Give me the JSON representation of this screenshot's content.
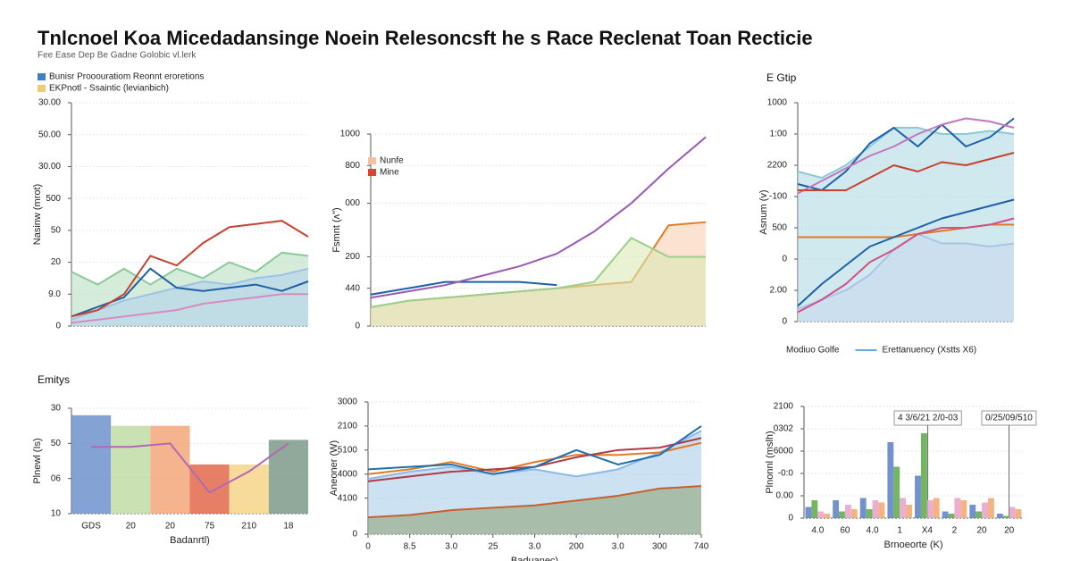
{
  "title": "Tnlcnoel Koa Micedadansinge Noein Relesoncsft he s Race Reclenat  Toan Recticie",
  "subtitle": "Fee Ease Dep  Be Gadne Golobic vl.lerk",
  "chart_data": [
    {
      "type": "line",
      "ylabel": "Nasinw (mrot)",
      "legend": [
        {
          "label": "Bunisr Prooouratiom Reonnt eroretions",
          "color": "#3f7fc4"
        },
        {
          "label": "EKPnotl - Ssaintic (levianbich)",
          "color": "#f0cc6a"
        }
      ],
      "x": [
        0,
        1,
        2,
        3,
        4,
        5,
        6,
        7,
        8,
        9
      ],
      "xlim": [
        0,
        9
      ],
      "ylim": [
        0,
        7
      ],
      "yticks": [
        0,
        {
          "value": 1,
          "label": "9.0"
        },
        {
          "value": 2,
          "label": "20"
        },
        {
          "value": 3,
          "label": "50"
        },
        {
          "value": 4,
          "label": "500"
        },
        {
          "value": 5,
          "label": "30.00"
        },
        {
          "value": 6,
          "label": "50.00"
        },
        {
          "value": 7,
          "label": "30.00"
        }
      ],
      "series": [
        {
          "fill": "#b7e0bf",
          "color": "#8cc99a",
          "values": [
            1.7,
            1.3,
            1.8,
            1.3,
            1.8,
            1.5,
            2.0,
            1.7,
            2.3,
            2.2
          ]
        },
        {
          "fill": "#b3d3ee",
          "color": "#9cc3e6",
          "values": [
            0.2,
            0.5,
            0.8,
            1.0,
            1.2,
            1.4,
            1.3,
            1.5,
            1.6,
            1.8
          ]
        },
        {
          "color": "#1f5fa8",
          "values": [
            0.3,
            0.6,
            0.9,
            1.8,
            1.2,
            1.1,
            1.2,
            1.3,
            1.1,
            1.4
          ]
        },
        {
          "color": "#c8412e",
          "values": [
            0.3,
            0.5,
            1.0,
            2.2,
            1.9,
            2.6,
            3.1,
            3.2,
            3.3,
            2.8
          ]
        },
        {
          "color": "#d88bc0",
          "values": [
            0.1,
            0.2,
            0.3,
            0.4,
            0.5,
            0.7,
            0.8,
            0.9,
            1.0,
            1.0
          ]
        }
      ]
    },
    {
      "type": "line",
      "ylabel": "Fsmnt (ʌ\")",
      "legend": [
        {
          "label": "Nunfe",
          "color": "#f6c09a"
        },
        {
          "label": "Mine",
          "color": "#d9452f"
        }
      ],
      "x": [
        0,
        1,
        2,
        3,
        4,
        5,
        6,
        7,
        8,
        9
      ],
      "xlim": [
        0,
        9
      ],
      "ylim": [
        0,
        6.1
      ],
      "yticks": [
        0,
        {
          "value": 1.2,
          "label": "440"
        },
        {
          "value": 2.2,
          "label": "200"
        },
        {
          "value": 3.9,
          "label": "000"
        },
        {
          "value": 5.1,
          "label": "800"
        },
        {
          "value": 6.1,
          "label": "1000"
        }
      ],
      "series": [
        {
          "fill": "#f8cfb2",
          "color": "#e07b25",
          "values": [
            0.6,
            0.8,
            0.9,
            1.0,
            1.1,
            1.2,
            1.3,
            1.4,
            3.2,
            3.3
          ]
        },
        {
          "fill": "#dbe9b5",
          "color": "#9ccf8a",
          "values": [
            0.6,
            0.8,
            0.9,
            1.0,
            1.1,
            1.2,
            1.4,
            2.8,
            2.2,
            2.2
          ]
        },
        {
          "color": "#1f5fa8",
          "values": [
            1.0,
            1.2,
            1.4,
            1.4,
            1.4,
            1.3,
            null,
            null,
            null,
            null
          ]
        },
        {
          "color": "#9b59b6",
          "values": [
            0.9,
            1.1,
            1.3,
            1.6,
            1.9,
            2.3,
            3.0,
            3.9,
            5.0,
            6.0
          ]
        }
      ]
    },
    {
      "type": "line",
      "title": "E Gtip",
      "ylabel": "Asnum (v)",
      "legend": [
        {
          "label": "Modiuo Golfe",
          "color": "#ffffff"
        },
        {
          "label": "Erettanuency (Xstts X6)",
          "color": "#2b8fd6"
        }
      ],
      "x": [
        0,
        1,
        2,
        3,
        4,
        5,
        6,
        7,
        8,
        9
      ],
      "xlim": [
        0,
        9
      ],
      "ylim": [
        0,
        7
      ],
      "yticks": [
        0,
        {
          "value": 1,
          "label": "2.00"
        },
        {
          "value": 2,
          "label": "0"
        },
        {
          "value": 3,
          "label": "500"
        },
        {
          "value": 4,
          "label": "-100"
        },
        {
          "value": 5,
          "label": "2200"
        },
        {
          "value": 6,
          "label": "1:00"
        },
        {
          "value": 7,
          "label": "1000"
        }
      ],
      "series": [
        {
          "fill": "#b0dbe3",
          "color": "#8ccbd6",
          "values": [
            4.8,
            4.6,
            5.0,
            5.6,
            6.2,
            6.2,
            6.0,
            6.0,
            6.1,
            6.0
          ]
        },
        {
          "fill": "#c9d9f0",
          "color": "#aac4e8",
          "values": [
            0.4,
            0.7,
            1.0,
            1.5,
            2.3,
            2.8,
            2.5,
            2.5,
            2.4,
            2.5
          ]
        },
        {
          "color": "#1f5fa8",
          "values": [
            4.4,
            4.2,
            4.8,
            5.7,
            6.2,
            5.6,
            6.3,
            5.6,
            5.9,
            6.5
          ]
        },
        {
          "color": "#c077c0",
          "values": [
            4.1,
            4.5,
            4.9,
            5.3,
            5.6,
            6.0,
            6.3,
            6.5,
            6.4,
            6.2
          ]
        },
        {
          "color": "#c8412e",
          "values": [
            4.2,
            4.2,
            4.2,
            4.6,
            5.0,
            4.8,
            5.1,
            5.0,
            5.2,
            5.4
          ]
        },
        {
          "color": "#e07b25",
          "values": [
            2.7,
            2.7,
            2.7,
            2.7,
            2.7,
            2.8,
            2.9,
            3.0,
            3.1,
            3.1
          ]
        },
        {
          "color": "#1f5fa8",
          "values": [
            0.5,
            1.2,
            1.8,
            2.4,
            2.7,
            3.0,
            3.3,
            3.5,
            3.7,
            3.9
          ]
        },
        {
          "color": "#d0508a",
          "values": [
            0.3,
            0.7,
            1.2,
            1.9,
            2.3,
            2.8,
            3.0,
            3.0,
            3.1,
            3.3
          ]
        }
      ]
    },
    {
      "type": "bar",
      "title": "Emitys",
      "ylabel": "Plnewl (Is)",
      "xlabel": "Badanrtl)",
      "categories": [
        "GDS",
        "20",
        "20",
        "75",
        "210",
        "18"
      ],
      "ylim": [
        0,
        3
      ],
      "yticks": [
        {
          "value": 0,
          "label": "10"
        },
        {
          "value": 1,
          "label": "06"
        },
        {
          "value": 2,
          "label": "50"
        },
        {
          "value": 3,
          "label": "30"
        }
      ],
      "colors": [
        "#6e93cc",
        "#bfdca6",
        "#f3a77a",
        "#e2684a",
        "#f5d58a",
        "#7c9a88"
      ],
      "series": [
        {
          "values": [
            2.8,
            2.5,
            2.5,
            1.4,
            1.4,
            2.1
          ]
        },
        {
          "type": "line",
          "color": "#b06ab3",
          "values": [
            1.9,
            1.9,
            2.0,
            0.6,
            1.2,
            2.0
          ]
        }
      ]
    },
    {
      "type": "line",
      "ylabel": "Aneoner (W)",
      "xlabel": "Baduanec)",
      "x": [
        0,
        1,
        2,
        3,
        4,
        5,
        6,
        7,
        8
      ],
      "xlim": [
        0,
        8
      ],
      "ylim": [
        0,
        5.5
      ],
      "xticks": [
        {
          "value": 0,
          "label": "0"
        },
        {
          "value": 1,
          "label": "8.5"
        },
        {
          "value": 2,
          "label": "3.0"
        },
        {
          "value": 3,
          "label": "25"
        },
        {
          "value": 4,
          "label": "3.0"
        },
        {
          "value": 5,
          "label": "200"
        },
        {
          "value": 6,
          "label": "3.0"
        },
        {
          "value": 7,
          "label": "300"
        },
        {
          "value": 8,
          "label": "740"
        }
      ],
      "yticks": [
        0,
        {
          "value": 1.5,
          "label": "4100"
        },
        {
          "value": 2.5,
          "label": "4000"
        },
        {
          "value": 3.5,
          "label": "5100"
        },
        {
          "value": 4.5,
          "label": "2100"
        },
        {
          "value": 5.5,
          "label": "3000"
        }
      ],
      "series": [
        {
          "fill": "#aacdea",
          "color": "#8bbbe2",
          "values": [
            2.3,
            2.6,
            2.8,
            2.5,
            2.7,
            2.4,
            2.7,
            3.4,
            4.3
          ]
        },
        {
          "fill": "#8fa67a",
          "color": "#c8602e",
          "values": [
            0.7,
            0.8,
            1.0,
            1.1,
            1.2,
            1.4,
            1.6,
            1.9,
            2.0
          ]
        },
        {
          "color": "#e07b25",
          "values": [
            2.5,
            2.7,
            3.0,
            2.6,
            3.0,
            3.3,
            3.3,
            3.4,
            3.8
          ]
        },
        {
          "color": "#b03a4a",
          "values": [
            2.2,
            2.4,
            2.6,
            2.7,
            2.8,
            3.2,
            3.5,
            3.6,
            4.0
          ]
        },
        {
          "color": "#1f6fb0",
          "values": [
            2.7,
            2.8,
            2.9,
            2.5,
            2.8,
            3.5,
            2.9,
            3.3,
            4.5
          ]
        }
      ]
    },
    {
      "type": "bar",
      "ylabel": "Plnonnl (mslh)",
      "xlabel": "Brnoeorte (K)",
      "annotations": [
        "4 3/6/21 2/0-03",
        "0/25/09/510"
      ],
      "categories": [
        "4.0",
        "60",
        "4.0",
        "1",
        "X4",
        "2",
        "20",
        "20"
      ],
      "ylim": [
        0,
        5
      ],
      "yticks": [
        0,
        {
          "value": 1,
          "label": "0.00"
        },
        {
          "value": 2,
          "label": "-0:0"
        },
        {
          "value": 3,
          "label": "6000"
        },
        {
          "value": 4,
          "label": "0302"
        },
        {
          "value": 5,
          "label": "2100"
        }
      ],
      "series": [
        {
          "color": "#5b7fc4",
          "values": [
            0.5,
            0.8,
            0.9,
            3.4,
            1.9,
            0.3,
            0.6,
            0.2
          ]
        },
        {
          "color": "#5aa845",
          "values": [
            0.8,
            0.3,
            0.4,
            2.3,
            3.8,
            0.2,
            0.3,
            0.1
          ]
        },
        {
          "color": "#e7a0c8",
          "values": [
            0.3,
            0.6,
            0.8,
            0.9,
            0.8,
            0.9,
            0.7,
            0.5
          ]
        },
        {
          "color": "#f2a66b",
          "values": [
            0.2,
            0.4,
            0.7,
            0.6,
            0.9,
            0.8,
            0.9,
            0.4
          ]
        }
      ]
    }
  ]
}
